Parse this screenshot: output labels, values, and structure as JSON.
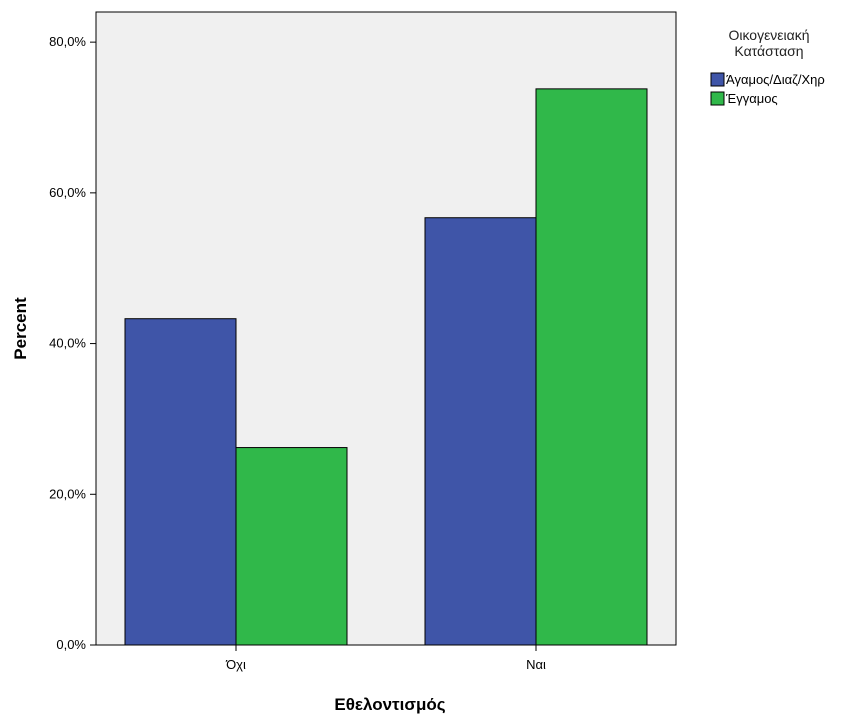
{
  "chart_data": {
    "type": "bar",
    "xlabel": "Εθελοντισμός",
    "ylabel": "Percent",
    "categories": [
      "Όχι",
      "Ναι"
    ],
    "series": [
      {
        "name": "Άγαμος/Διαζ/Χηρ",
        "values": [
          43.3,
          56.7
        ],
        "color": "#3f55a8"
      },
      {
        "name": "Έγγαμος",
        "values": [
          26.2,
          73.8
        ],
        "color": "#30b84a"
      }
    ],
    "ylim": [
      0,
      84
    ],
    "yticks": [
      {
        "value": 0,
        "label": "0,0%"
      },
      {
        "value": 20,
        "label": "20,0%"
      },
      {
        "value": 40,
        "label": "40,0%"
      },
      {
        "value": 60,
        "label": "60,0%"
      },
      {
        "value": 80,
        "label": "80,0%"
      }
    ],
    "legend": {
      "title_lines": [
        "Οικογενειακή",
        "Κατάσταση"
      ],
      "position": "top-right"
    },
    "plot_background": "#f0f0f0",
    "grid": false
  }
}
